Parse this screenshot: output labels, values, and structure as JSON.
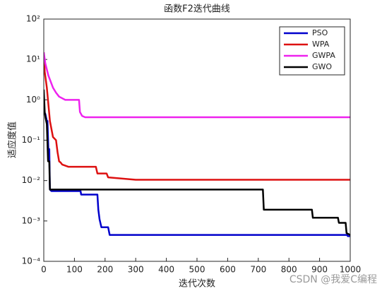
{
  "chart_data": {
    "type": "line",
    "title": "函数F2迭代曲线",
    "xlabel": "迭代次数",
    "ylabel": "适应度值",
    "watermark": "CSDN @我爱C编程",
    "xlim": [
      0,
      1000
    ],
    "xticks": [
      0,
      100,
      200,
      300,
      400,
      500,
      600,
      700,
      800,
      900,
      1000
    ],
    "ylim": [
      0.0001,
      100
    ],
    "yscale": "log",
    "yticks": [
      {
        "value": 0.0001,
        "label": "10⁻⁴"
      },
      {
        "value": 0.001,
        "label": "10⁻³"
      },
      {
        "value": 0.01,
        "label": "10⁻²"
      },
      {
        "value": 0.1,
        "label": "10⁻¹"
      },
      {
        "value": 1,
        "label": "10⁰"
      },
      {
        "value": 10,
        "label": "10¹"
      },
      {
        "value": 100,
        "label": "10²"
      }
    ],
    "legend": "upper right",
    "series": [
      {
        "name": "PSO",
        "color": "#0000cc",
        "x": [
          0,
          5,
          10,
          12,
          15,
          18,
          20,
          25,
          50,
          120,
          122,
          175,
          178,
          182,
          188,
          210,
          215,
          990,
          992,
          1000
        ],
        "values": [
          0.5,
          0.45,
          0.3,
          0.3,
          0.06,
          0.06,
          0.006,
          0.0055,
          0.0055,
          0.0055,
          0.0045,
          0.0045,
          0.0019,
          0.0011,
          0.0007,
          0.0007,
          0.00045,
          0.00045,
          0.00042,
          0.00042
        ]
      },
      {
        "name": "WPA",
        "color": "#dd1111",
        "x": [
          0,
          3,
          10,
          20,
          30,
          40,
          45,
          50,
          55,
          60,
          80,
          170,
          175,
          205,
          210,
          300,
          1000
        ],
        "values": [
          15,
          5,
          2,
          0.3,
          0.12,
          0.1,
          0.05,
          0.03,
          0.028,
          0.025,
          0.022,
          0.022,
          0.015,
          0.015,
          0.012,
          0.0105,
          0.0105
        ]
      },
      {
        "name": "GWPA",
        "color": "#ee22ee",
        "x": [
          0,
          5,
          15,
          30,
          40,
          50,
          70,
          115,
          118,
          125,
          135,
          1000
        ],
        "values": [
          15,
          8,
          4,
          2,
          1.5,
          1.2,
          1.0,
          1.0,
          0.5,
          0.4,
          0.37,
          0.37
        ]
      },
      {
        "name": "GWO",
        "color": "#000000",
        "x": [
          0,
          3,
          6,
          10,
          14,
          18,
          20,
          715,
          718,
          875,
          878,
          960,
          963,
          985,
          988,
          1000
        ],
        "values": [
          1.8,
          0.5,
          0.35,
          0.25,
          0.03,
          0.03,
          0.006,
          0.006,
          0.0019,
          0.0019,
          0.0012,
          0.0012,
          0.0009,
          0.0009,
          0.0005,
          0.00045
        ]
      }
    ]
  }
}
